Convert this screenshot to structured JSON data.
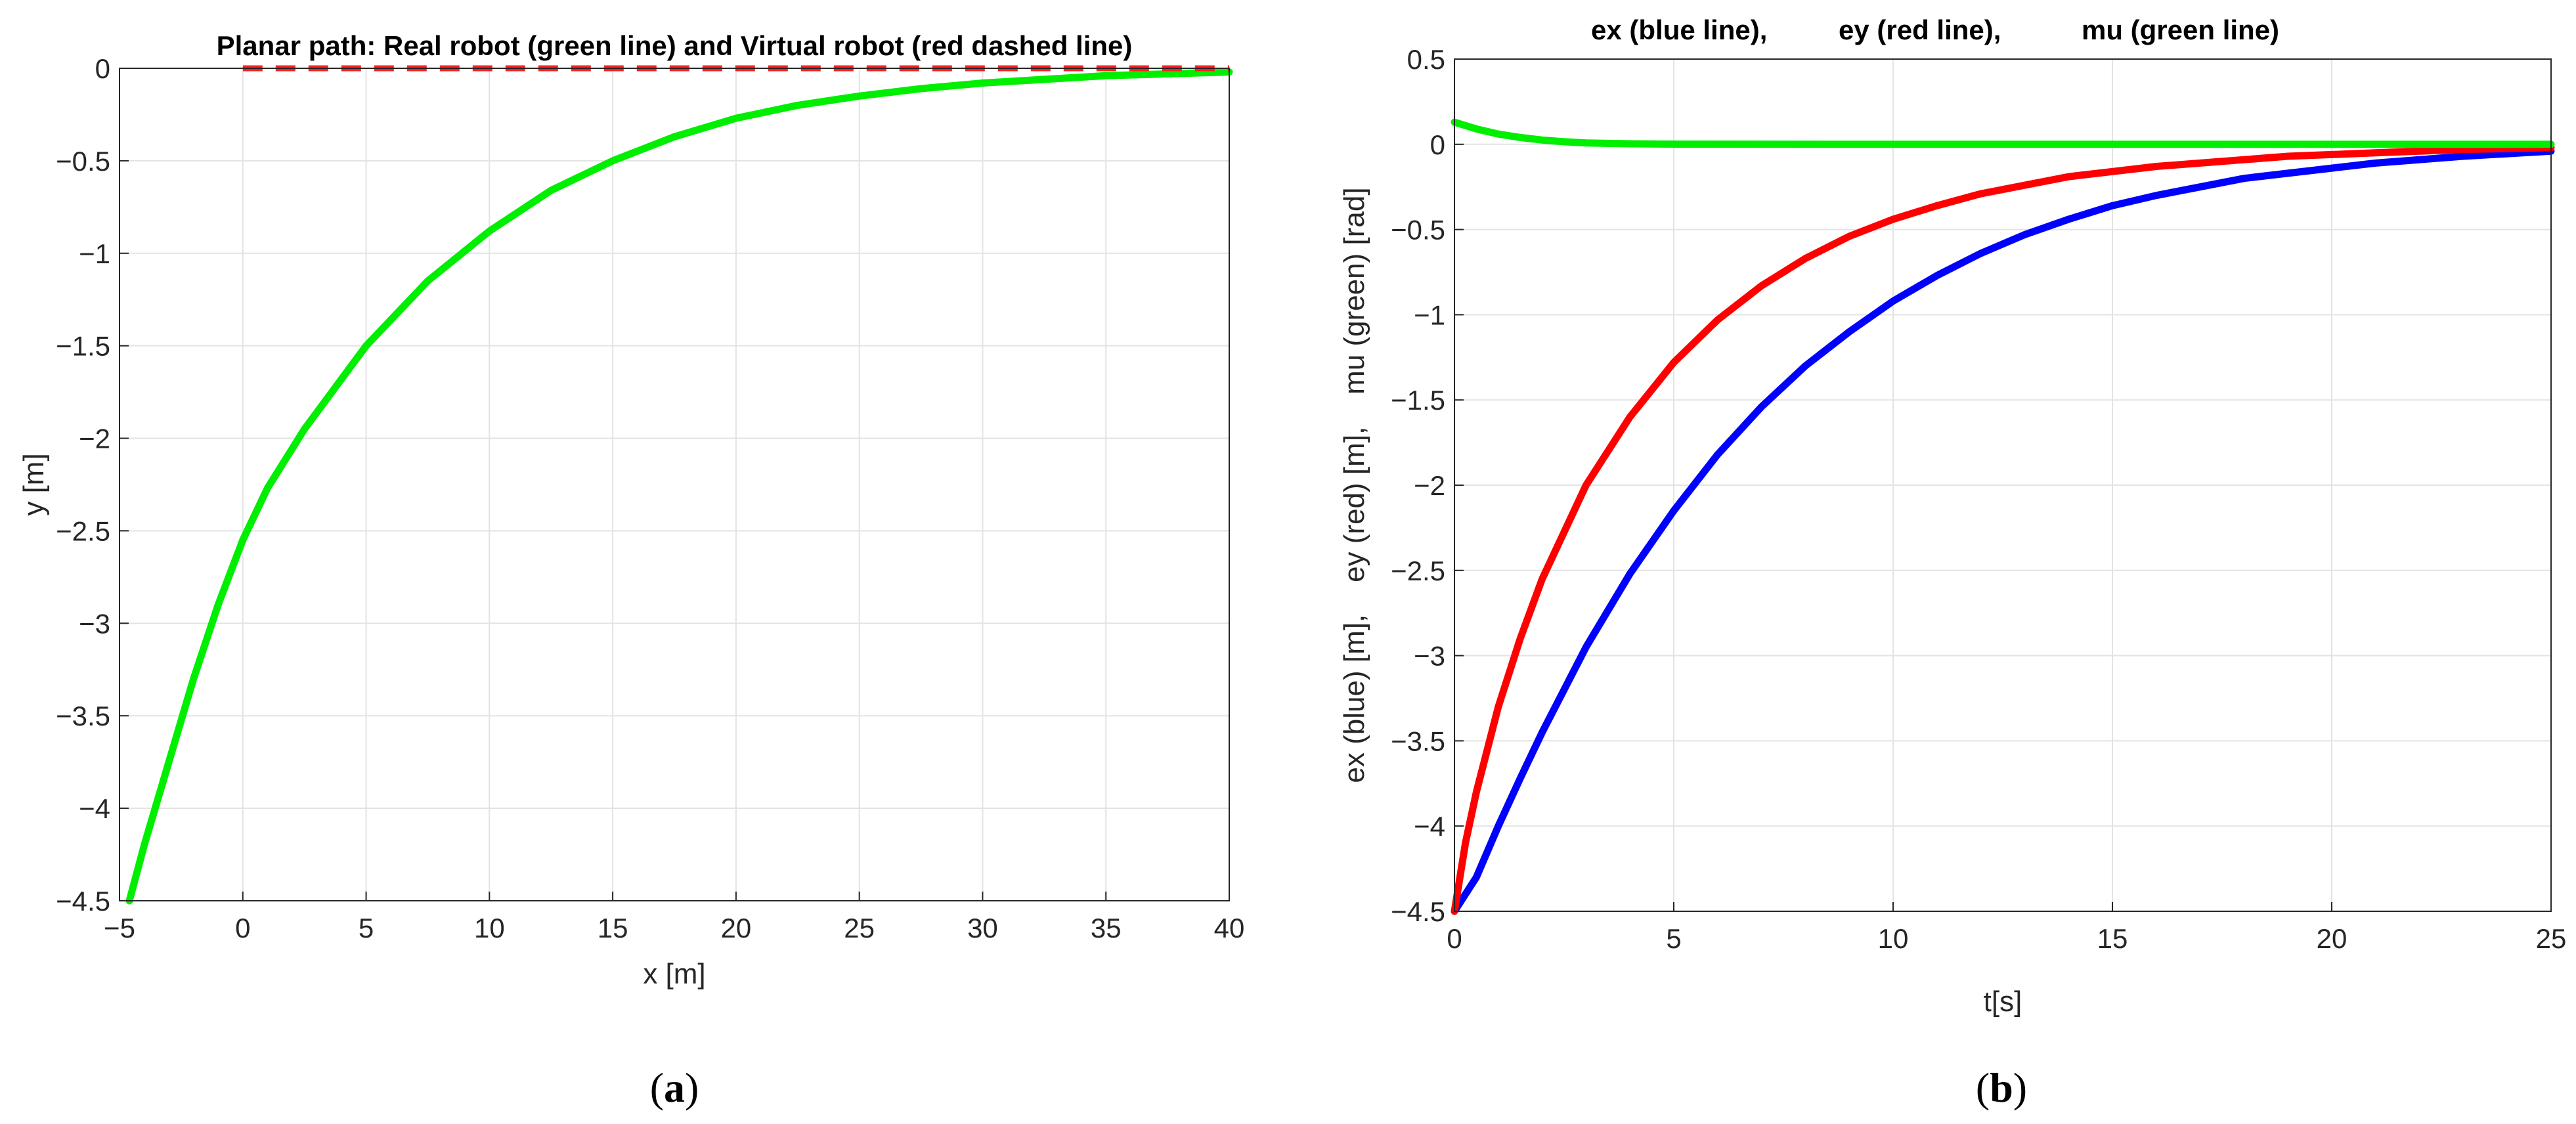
{
  "chart_data": [
    {
      "type": "line",
      "panel_label": "a",
      "title": "Planar path: Real robot (green line) and Virtual robot (red dashed line)",
      "xlabel": "x [m]",
      "ylabel": "y [m]",
      "xlim": [
        -5,
        40
      ],
      "ylim": [
        -4.5,
        0
      ],
      "xticks": [
        -5,
        0,
        5,
        10,
        15,
        20,
        25,
        30,
        35,
        40
      ],
      "yticks": [
        0,
        -0.5,
        -1,
        -1.5,
        -2,
        -2.5,
        -3,
        -3.5,
        -4,
        -4.5
      ],
      "grid": true,
      "series": [
        {
          "color": "#00ee00",
          "dash": "solid",
          "x": [
            -4.6,
            -4.0,
            -3.0,
            -2.0,
            -1.0,
            0.0,
            1.0,
            2.5,
            5.0,
            7.5,
            10.0,
            12.5,
            15.0,
            17.5,
            20.0,
            22.5,
            25.0,
            27.5,
            30.0,
            32.5,
            35.0,
            37.5,
            40.0
          ],
          "y": [
            -4.5,
            -4.2,
            -3.75,
            -3.3,
            -2.9,
            -2.55,
            -2.27,
            -1.95,
            -1.5,
            -1.15,
            -0.88,
            -0.66,
            -0.5,
            -0.37,
            -0.27,
            -0.2,
            -0.15,
            -0.11,
            -0.08,
            -0.06,
            -0.04,
            -0.03,
            -0.02
          ]
        },
        {
          "color": "#ff2020",
          "dash": "dashed",
          "x": [
            0,
            40
          ],
          "y": [
            0,
            0
          ]
        }
      ]
    },
    {
      "type": "line",
      "panel_label": "b",
      "title_parts": [
        "ex (blue line),",
        "ey (red line),",
        "mu (green line)"
      ],
      "xlabel": "t[s]",
      "ylabel": "ex (blue) [m],    ey (red) [m],    mu (green) [rad]",
      "xlim": [
        0,
        25
      ],
      "ylim": [
        -4.5,
        0.5
      ],
      "xticks": [
        0,
        5,
        10,
        15,
        20,
        25
      ],
      "yticks": [
        0.5,
        0,
        -0.5,
        -1,
        -1.5,
        -2,
        -2.5,
        -3,
        -3.5,
        -4,
        -4.5
      ],
      "grid": true,
      "series": [
        {
          "color": "#0000ff",
          "x": [
            0,
            0.5,
            1,
            1.5,
            2,
            3,
            4,
            5,
            6,
            7,
            8,
            9,
            10,
            11,
            12,
            13,
            14,
            15,
            16,
            17,
            18,
            19,
            20,
            21,
            22,
            23,
            24,
            25
          ],
          "y": [
            -4.5,
            -4.3,
            -4.0,
            -3.72,
            -3.45,
            -2.95,
            -2.52,
            -2.15,
            -1.82,
            -1.54,
            -1.3,
            -1.1,
            -0.92,
            -0.77,
            -0.64,
            -0.53,
            -0.44,
            -0.36,
            -0.3,
            -0.25,
            -0.2,
            -0.17,
            -0.14,
            -0.11,
            -0.09,
            -0.07,
            -0.055,
            -0.04
          ]
        },
        {
          "color": "#ff0000",
          "x": [
            0,
            0.25,
            0.5,
            1,
            1.5,
            2,
            3,
            4,
            5,
            6,
            7,
            8,
            9,
            10,
            11,
            12,
            13,
            14,
            15,
            16,
            17,
            18,
            19,
            20,
            21,
            22,
            23,
            24,
            25
          ],
          "y": [
            -4.5,
            -4.1,
            -3.8,
            -3.3,
            -2.9,
            -2.55,
            -2.0,
            -1.6,
            -1.28,
            -1.03,
            -0.83,
            -0.67,
            -0.54,
            -0.44,
            -0.36,
            -0.29,
            -0.24,
            -0.19,
            -0.16,
            -0.13,
            -0.11,
            -0.09,
            -0.07,
            -0.06,
            -0.05,
            -0.04,
            -0.03,
            -0.025,
            -0.02
          ]
        },
        {
          "color": "#00ee00",
          "x": [
            0,
            0.5,
            1,
            1.5,
            2,
            2.5,
            3,
            4,
            5,
            10,
            15,
            20,
            25
          ],
          "y": [
            0.13,
            0.09,
            0.06,
            0.04,
            0.025,
            0.015,
            0.008,
            0.003,
            0.001,
            0.0,
            0.0,
            0.0,
            0.0
          ]
        }
      ]
    }
  ]
}
